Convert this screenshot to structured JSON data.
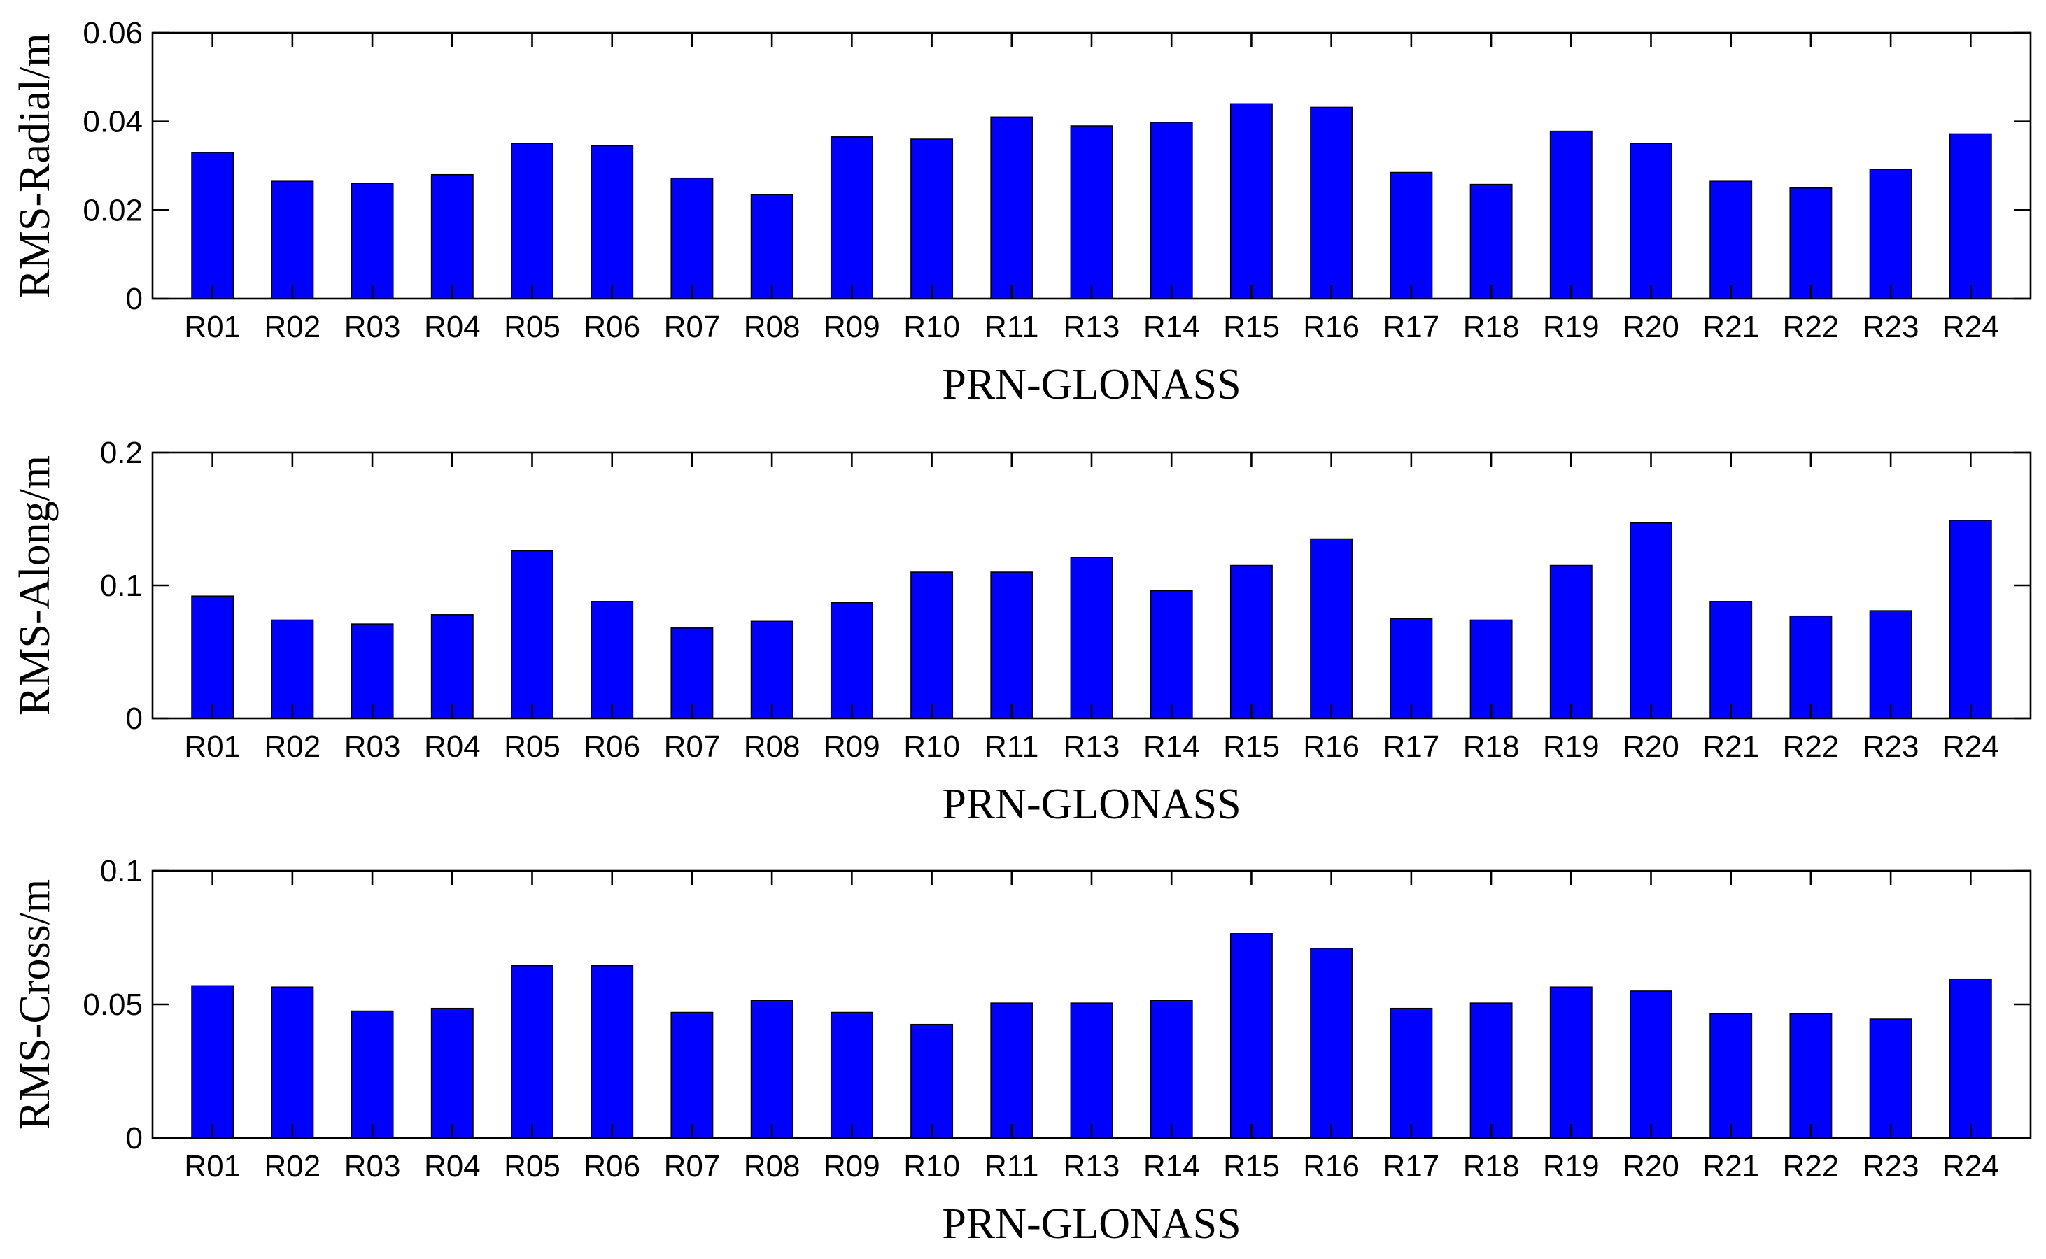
{
  "chart_data": [
    {
      "type": "bar",
      "categories": [
        "R01",
        "R02",
        "R03",
        "R04",
        "R05",
        "R06",
        "R07",
        "R08",
        "R09",
        "R10",
        "R11",
        "R13",
        "R14",
        "R15",
        "R16",
        "R17",
        "R18",
        "R19",
        "R20",
        "R21",
        "R22",
        "R23",
        "R24"
      ],
      "values": [
        0.033,
        0.0265,
        0.026,
        0.028,
        0.035,
        0.0345,
        0.0272,
        0.0235,
        0.0365,
        0.036,
        0.041,
        0.039,
        0.0398,
        0.044,
        0.0432,
        0.0285,
        0.0258,
        0.0378,
        0.035,
        0.0265,
        0.025,
        0.0292,
        0.0372
      ],
      "xlabel": "PRN-GLONASS",
      "ylabel": "RMS-Radial/m",
      "ylim": [
        0,
        0.06
      ],
      "yticks": [
        0,
        0.02,
        0.04,
        0.06
      ],
      "ytick_labels": [
        "0",
        "0.02",
        "0.04",
        "0.06"
      ],
      "bar_color": "#0000ff",
      "grid": false
    },
    {
      "type": "bar",
      "categories": [
        "R01",
        "R02",
        "R03",
        "R04",
        "R05",
        "R06",
        "R07",
        "R08",
        "R09",
        "R10",
        "R11",
        "R13",
        "R14",
        "R15",
        "R16",
        "R17",
        "R18",
        "R19",
        "R20",
        "R21",
        "R22",
        "R23",
        "R24"
      ],
      "values": [
        0.092,
        0.074,
        0.071,
        0.078,
        0.126,
        0.088,
        0.068,
        0.073,
        0.087,
        0.11,
        0.11,
        0.121,
        0.096,
        0.115,
        0.135,
        0.075,
        0.074,
        0.115,
        0.147,
        0.088,
        0.077,
        0.081,
        0.149
      ],
      "xlabel": "PRN-GLONASS",
      "ylabel": "RMS-Along/m",
      "ylim": [
        0,
        0.2
      ],
      "yticks": [
        0,
        0.1,
        0.2
      ],
      "ytick_labels": [
        "0",
        "0.1",
        "0.2"
      ],
      "bar_color": "#0000ff",
      "grid": false
    },
    {
      "type": "bar",
      "categories": [
        "R01",
        "R02",
        "R03",
        "R04",
        "R05",
        "R06",
        "R07",
        "R08",
        "R09",
        "R10",
        "R11",
        "R13",
        "R14",
        "R15",
        "R16",
        "R17",
        "R18",
        "R19",
        "R20",
        "R21",
        "R22",
        "R23",
        "R24"
      ],
      "values": [
        0.057,
        0.0565,
        0.0475,
        0.0485,
        0.0645,
        0.0645,
        0.047,
        0.0515,
        0.047,
        0.0425,
        0.0505,
        0.0505,
        0.0515,
        0.0765,
        0.071,
        0.0485,
        0.0505,
        0.0565,
        0.055,
        0.0465,
        0.0465,
        0.0445,
        0.0595
      ],
      "xlabel": "PRN-GLONASS",
      "ylabel": "RMS-Cross/m",
      "ylim": [
        0,
        0.1
      ],
      "yticks": [
        0,
        0.05,
        0.1
      ],
      "ytick_labels": [
        "0",
        "0.05",
        "0.1"
      ],
      "bar_color": "#0000ff",
      "grid": false
    }
  ]
}
